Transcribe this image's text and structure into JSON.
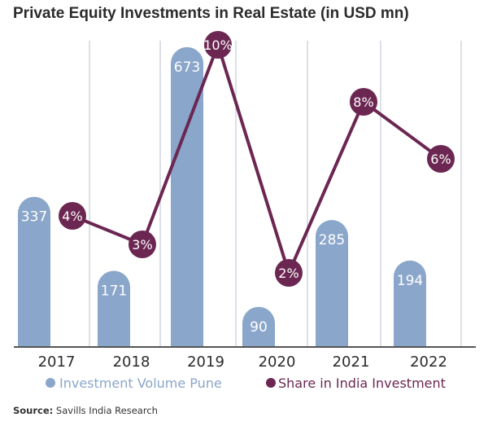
{
  "chart_data": {
    "type": "bar+line",
    "title": "Private Equity Investments in Real Estate (in USD mn)",
    "categories": [
      "2017",
      "2018",
      "2019",
      "2020",
      "2021",
      "2022"
    ],
    "series": [
      {
        "name": "Investment Volume Pune",
        "type": "bar",
        "values": [
          337,
          171,
          673,
          90,
          285,
          194
        ],
        "labels": [
          "337",
          "171",
          "673",
          "90",
          "285",
          "194"
        ],
        "color": "#8aa6cb"
      },
      {
        "name": "Share in India Investment",
        "type": "line",
        "values": [
          4,
          3,
          10,
          2,
          8,
          6
        ],
        "labels": [
          "4%",
          "3%",
          "10%",
          "2%",
          "8%",
          "6%"
        ],
        "unit": "%",
        "color": "#6b2752"
      }
    ],
    "grid": "vertical",
    "legend": "bottom"
  },
  "source": {
    "label": "Source:",
    "text": "Savills India Research"
  }
}
